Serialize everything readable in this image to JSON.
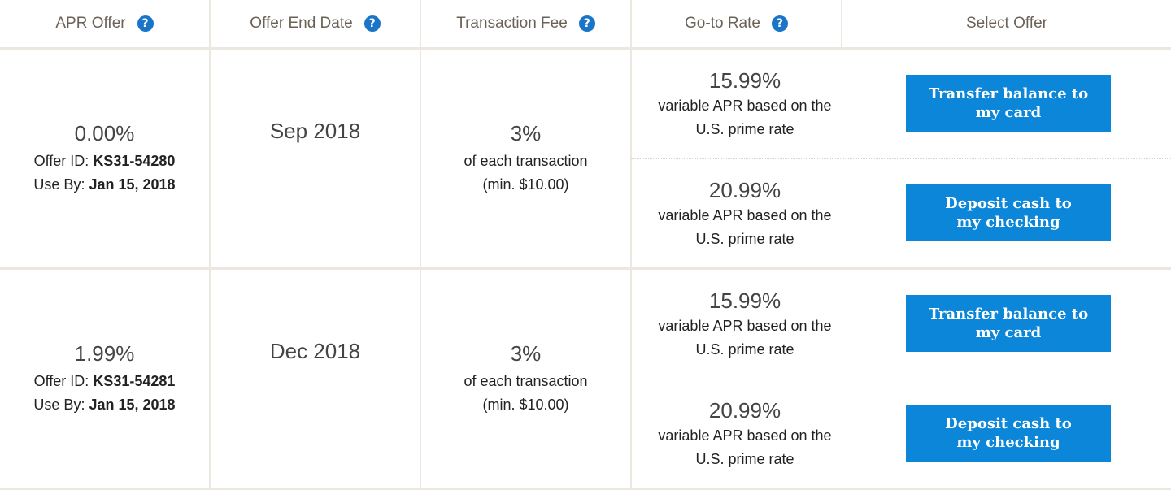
{
  "header": {
    "columns": [
      {
        "label": "APR Offer",
        "help": "?"
      },
      {
        "label": "Offer End Date",
        "help": "?"
      },
      {
        "label": "Transaction Fee",
        "help": "?"
      },
      {
        "label": "Go-to Rate",
        "help": "?"
      },
      {
        "label": "Select Offer"
      }
    ]
  },
  "offers": [
    {
      "apr": "0.00%",
      "offer_id_label": "Offer ID:",
      "offer_id": "KS31-54280",
      "use_by_label": "Use By:",
      "use_by": "Jan 15, 2018",
      "end_date": "Sep 2018",
      "fee": "3%",
      "fee_line1": "of each transaction",
      "fee_line2": "(min. $10.00)",
      "options": [
        {
          "rate": "15.99%",
          "desc1": "variable APR based on the",
          "desc2": "U.S. prime rate",
          "button_line1": "Transfer balance to",
          "button_line2": "my card"
        },
        {
          "rate": "20.99%",
          "desc1": "variable APR based on the",
          "desc2": "U.S. prime rate",
          "button_line1": "Deposit cash to",
          "button_line2": "my checking"
        }
      ]
    },
    {
      "apr": "1.99%",
      "offer_id_label": "Offer ID:",
      "offer_id": "KS31-54281",
      "use_by_label": "Use By:",
      "use_by": "Jan 15, 2018",
      "end_date": "Dec 2018",
      "fee": "3%",
      "fee_line1": "of each transaction",
      "fee_line2": "(min. $10.00)",
      "options": [
        {
          "rate": "15.99%",
          "desc1": "variable APR based on the",
          "desc2": "U.S. prime rate",
          "button_line1": "Transfer balance to",
          "button_line2": "my card"
        },
        {
          "rate": "20.99%",
          "desc1": "variable APR based on the",
          "desc2": "U.S. prime rate",
          "button_line1": "Deposit cash to",
          "button_line2": "my checking"
        }
      ]
    }
  ],
  "colors": {
    "button": "#0b86d8",
    "help_icon": "#1a75c9",
    "divider": "#ece8e1"
  }
}
